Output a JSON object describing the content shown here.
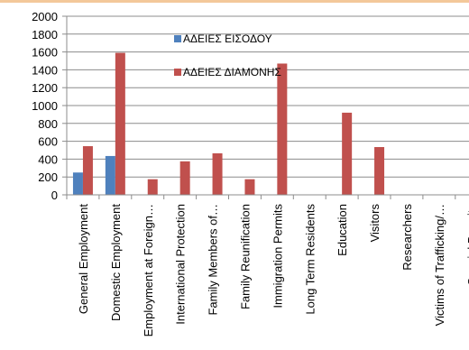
{
  "chart_data": {
    "type": "bar",
    "title": "",
    "xlabel": "",
    "ylabel": "",
    "ylim": [
      0,
      2000
    ],
    "yticks": [
      0,
      200,
      400,
      600,
      800,
      1000,
      1200,
      1400,
      1600,
      1800,
      2000
    ],
    "grid": true,
    "legend_position": "top-center",
    "categories": [
      "General Employment",
      "Domestic Employment",
      "Employment at Foreign…",
      "International Protection",
      "Family Members of…",
      "Family Reunification",
      "Immigration Permits",
      "Long Term Residents",
      "Education",
      "Visitors",
      "Researchers",
      "Victims of Trafficking/…",
      "Special Permits"
    ],
    "series": [
      {
        "name": "ΑΔΕΙΕΣ ΕΙΣΟΔΟΥ",
        "color": "#4f81bd",
        "values": [
          250,
          435,
          0,
          0,
          0,
          0,
          0,
          0,
          0,
          0,
          0,
          0,
          0
        ]
      },
      {
        "name": "ΑΔΕΙΕΣ ΔΙΑΜΟΝΗΣ",
        "color": "#c0504d",
        "values": [
          545,
          1590,
          175,
          375,
          465,
          175,
          1470,
          0,
          920,
          535,
          0,
          0,
          0
        ]
      }
    ]
  }
}
